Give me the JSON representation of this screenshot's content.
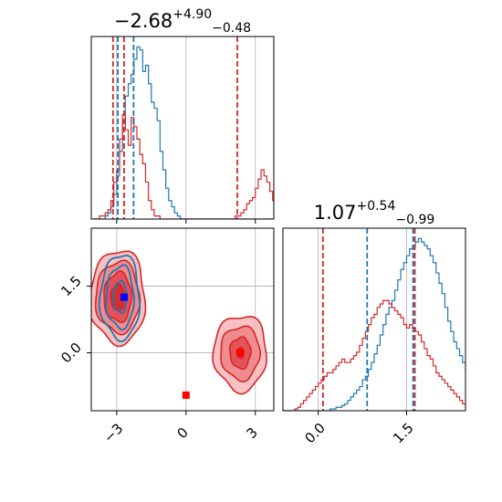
{
  "chart_data": [
    {
      "type": "histogram",
      "panel": "top-left marginal",
      "title": {
        "main": "−2.68",
        "sup": "+4.90",
        "sub": "−0.48"
      },
      "xlim": [
        -4.1,
        3.8
      ],
      "grid": true,
      "series": [
        {
          "color": "#1f77b4",
          "bin_start": -4.0,
          "bin_width": 0.125,
          "counts": [
            0,
            0,
            0,
            0,
            1,
            2,
            4,
            8,
            14,
            22,
            32,
            40,
            44,
            47,
            52,
            56,
            55,
            48,
            50,
            44,
            38,
            36,
            32,
            22,
            16,
            10,
            6,
            4,
            2,
            1,
            0,
            0,
            0,
            0,
            0,
            0,
            0,
            0,
            0,
            0,
            0,
            0,
            0,
            0,
            0,
            0,
            0,
            0,
            0,
            0,
            0,
            0,
            0,
            0,
            0,
            0,
            0,
            0,
            0,
            0,
            0,
            0,
            0,
            0
          ]
        },
        {
          "color": "#d62728",
          "bin_start": -4.0,
          "bin_width": 0.125,
          "counts": [
            0,
            0,
            1,
            1,
            2,
            3,
            6,
            12,
            16,
            26,
            34,
            29,
            24,
            33,
            30,
            26,
            21,
            18,
            12,
            6,
            3,
            1,
            1,
            0,
            0,
            0,
            0,
            0,
            0,
            0,
            0,
            0,
            0,
            0,
            0,
            0,
            0,
            0,
            0,
            0,
            0,
            0,
            0,
            0,
            0,
            0,
            0,
            0,
            0,
            1,
            1,
            2,
            3,
            5,
            6,
            7,
            10,
            13,
            16,
            14,
            12,
            9,
            6,
            3,
            2,
            1
          ]
        }
      ],
      "vlines": [
        {
          "x": -3.16,
          "color": "#d62728"
        },
        {
          "x": -2.95,
          "color": "#1f77b4"
        },
        {
          "x": -2.68,
          "color": "#d62728"
        },
        {
          "x": -2.27,
          "color": "#1f77b4"
        },
        {
          "x": 2.22,
          "color": "#d62728"
        }
      ],
      "xticks": [
        -3,
        0,
        3
      ]
    },
    {
      "type": "histogram",
      "panel": "bottom-right marginal",
      "title": {
        "main": "1.07",
        "sup": "+0.54",
        "sub": "−0.99"
      },
      "xlim": [
        -0.6,
        2.5
      ],
      "xticks": [
        0.0,
        1.5
      ],
      "xtick_labels": [
        "0.0",
        "1.5"
      ],
      "grid": true,
      "series": [
        {
          "color": "#1f77b4",
          "bin_start": -0.6,
          "bin_width": 0.05,
          "counts": [
            0,
            0,
            0,
            0,
            0,
            0,
            0,
            0,
            0,
            0,
            0,
            0,
            0,
            0,
            0,
            0,
            1,
            1,
            2,
            2,
            3,
            4,
            6,
            8,
            10,
            12,
            14,
            18,
            20,
            24,
            28,
            33,
            38,
            44,
            50,
            56,
            60,
            64,
            70,
            76,
            82,
            86,
            90,
            94,
            96,
            98,
            100,
            98,
            96,
            94,
            90,
            86,
            80,
            74,
            68,
            60,
            52,
            46,
            40,
            36,
            32,
            28,
            24,
            20,
            16,
            12,
            8,
            4,
            2,
            0
          ]
        },
        {
          "color": "#d62728",
          "bin_start": -0.6,
          "bin_width": 0.05,
          "counts": [
            0,
            0,
            0,
            0,
            1,
            2,
            4,
            6,
            8,
            10,
            12,
            14,
            16,
            18,
            20,
            22,
            22,
            24,
            26,
            28,
            30,
            28,
            28,
            30,
            32,
            34,
            38,
            42,
            46,
            50,
            54,
            56,
            60,
            62,
            64,
            64,
            62,
            60,
            58,
            56,
            54,
            50,
            48,
            50,
            48,
            46,
            44,
            40,
            36,
            32,
            30,
            26,
            22,
            20,
            18,
            16,
            14,
            12,
            10,
            8,
            6,
            4,
            2,
            1,
            0,
            0,
            0,
            0,
            0,
            0
          ]
        }
      ],
      "vlines": [
        {
          "x": 0.08,
          "color": "#d62728"
        },
        {
          "x": 0.83,
          "color": "#1f77b4"
        },
        {
          "x": 1.61,
          "color": "#1f77b4"
        },
        {
          "x": 1.64,
          "color": "#d62728"
        }
      ]
    },
    {
      "type": "contour",
      "panel": "bottom-left joint",
      "xlim": [
        -4.1,
        3.8
      ],
      "ylim": [
        -1.3,
        2.8
      ],
      "xticks": [
        -3,
        0,
        3
      ],
      "xtick_labels": [
        "−3",
        "0",
        "3"
      ],
      "yticks": [
        0.0,
        1.5
      ],
      "ytick_labels": [
        "0.0",
        "1.5"
      ],
      "grid": true,
      "contours": [
        {
          "color": "#d62728",
          "cx": -2.95,
          "cy": 1.25,
          "levels": [
            [
              1.2,
              1.05
            ],
            [
              0.95,
              0.8
            ],
            [
              0.6,
              0.55
            ],
            [
              0.3,
              0.3
            ]
          ]
        },
        {
          "color": "#d62728",
          "cx": 2.35,
          "cy": 0.0,
          "levels": [
            [
              1.15,
              0.85
            ],
            [
              0.85,
              0.6
            ],
            [
              0.45,
              0.35
            ],
            [
              0.15,
              0.12
            ]
          ]
        },
        {
          "color": "#1f77b4",
          "cx": -2.85,
          "cy": 1.25,
          "levels": [
            [
              0.85,
              0.95
            ],
            [
              0.6,
              0.7
            ],
            [
              0.3,
              0.35
            ]
          ]
        }
      ],
      "markers": [
        {
          "x": -2.68,
          "y": 1.25,
          "color": "#0000ff"
        },
        {
          "x": 0.0,
          "y": -0.95,
          "color": "#ff0000"
        },
        {
          "x": 2.35,
          "y": 0.0,
          "color": "#ff0000"
        }
      ]
    }
  ]
}
